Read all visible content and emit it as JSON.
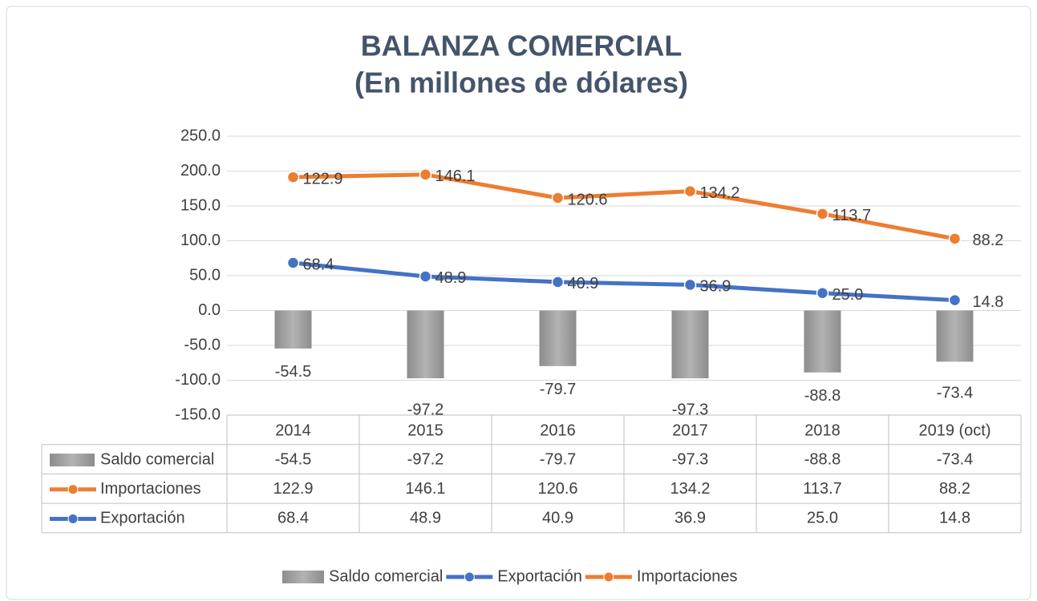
{
  "chart_data": {
    "type": "combo",
    "title": "BALANZA COMERCIAL",
    "subtitle": "(En millones de dólares)",
    "categories": [
      "2014",
      "2015",
      "2016",
      "2017",
      "2018",
      "2019 (oct)"
    ],
    "series": [
      {
        "name": "Saldo comercial",
        "type": "bar",
        "color": "#a5a5a5",
        "values": [
          -54.5,
          -97.2,
          -79.7,
          -97.3,
          -88.8,
          -73.4
        ]
      },
      {
        "name": "Exportación",
        "type": "line",
        "color": "#4472c4",
        "values": [
          68.4,
          48.9,
          40.9,
          36.9,
          25,
          14.8
        ],
        "value_labels": [
          "68.4",
          "48.9",
          "40.9",
          "36.9",
          "25.0",
          "14.8"
        ]
      },
      {
        "name": "Importaciones",
        "type": "line",
        "color": "#ed7d31",
        "stacked": true,
        "values": [
          122.9,
          146.1,
          120.6,
          134.2,
          113.7,
          88.2
        ]
      }
    ],
    "ylim": [
      -150,
      250
    ],
    "yticks": [
      {
        "value": -150,
        "label": "-150.0"
      },
      {
        "value": -100,
        "label": "-100.0"
      },
      {
        "value": -50,
        "label": "-50.0"
      },
      {
        "value": 0,
        "label": "0.0"
      },
      {
        "value": 50,
        "label": "50.0"
      },
      {
        "value": 100,
        "label": "100.0"
      },
      {
        "value": 150,
        "label": "150.0"
      },
      {
        "value": 200,
        "label": "200.0"
      },
      {
        "value": 250,
        "label": "250.0"
      }
    ],
    "grid": true,
    "data_table": true,
    "legend": "bottom"
  }
}
